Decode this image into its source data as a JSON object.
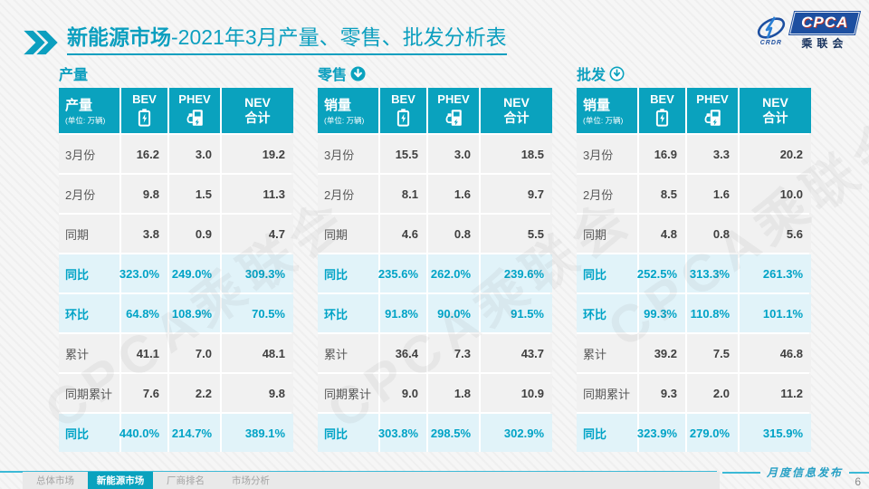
{
  "title": {
    "main": "新能源市场",
    "rest": "-2021年3月产量、零售、批发分析表"
  },
  "logo": {
    "cpca": "CPCA",
    "crdr": "CRDR",
    "assoc": "乘联会"
  },
  "watermark": "CPCA乘联会",
  "colors": {
    "accent": "#0aa2be",
    "highlight_row_bg": "#e1f3f9",
    "row_bg": "#f1f1f1",
    "percent_text": "#00a3c6"
  },
  "tables": [
    {
      "section_title": "产量",
      "arrow": "none",
      "corner": {
        "label": "产量",
        "unit": "(单位: 万辆)"
      },
      "columns": [
        {
          "label": "BEV",
          "icon": "battery-icon"
        },
        {
          "label": "PHEV",
          "icon": "charger-icon"
        },
        {
          "label": "NEV",
          "sublabel": "合计"
        }
      ],
      "rows": [
        {
          "label": "3月份",
          "values": [
            "16.2",
            "3.0",
            "19.2"
          ],
          "highlight": false
        },
        {
          "label": "2月份",
          "values": [
            "9.8",
            "1.5",
            "11.3"
          ],
          "highlight": false
        },
        {
          "label": "同期",
          "values": [
            "3.8",
            "0.9",
            "4.7"
          ],
          "highlight": false
        },
        {
          "label": "同比",
          "values": [
            "323.0%",
            "249.0%",
            "309.3%"
          ],
          "highlight": true
        },
        {
          "label": "环比",
          "values": [
            "64.8%",
            "108.9%",
            "70.5%"
          ],
          "highlight": true
        },
        {
          "label": "累计",
          "values": [
            "41.1",
            "7.0",
            "48.1"
          ],
          "highlight": false
        },
        {
          "label": "同期累计",
          "values": [
            "7.6",
            "2.2",
            "9.8"
          ],
          "highlight": false
        },
        {
          "label": "同比",
          "values": [
            "440.0%",
            "214.7%",
            "389.1%"
          ],
          "highlight": true
        }
      ]
    },
    {
      "section_title": "零售",
      "arrow": "arrow-down-solid",
      "corner": {
        "label": "销量",
        "unit": "(单位: 万辆)"
      },
      "columns": [
        {
          "label": "BEV",
          "icon": "battery-icon"
        },
        {
          "label": "PHEV",
          "icon": "charger-icon"
        },
        {
          "label": "NEV",
          "sublabel": "合计"
        }
      ],
      "rows": [
        {
          "label": "3月份",
          "values": [
            "15.5",
            "3.0",
            "18.5"
          ],
          "highlight": false
        },
        {
          "label": "2月份",
          "values": [
            "8.1",
            "1.6",
            "9.7"
          ],
          "highlight": false
        },
        {
          "label": "同期",
          "values": [
            "4.6",
            "0.8",
            "5.5"
          ],
          "highlight": false
        },
        {
          "label": "同比",
          "values": [
            "235.6%",
            "262.0%",
            "239.6%"
          ],
          "highlight": true
        },
        {
          "label": "环比",
          "values": [
            "91.8%",
            "90.0%",
            "91.5%"
          ],
          "highlight": true
        },
        {
          "label": "累计",
          "values": [
            "36.4",
            "7.3",
            "43.7"
          ],
          "highlight": false
        },
        {
          "label": "同期累计",
          "values": [
            "9.0",
            "1.8",
            "10.9"
          ],
          "highlight": false
        },
        {
          "label": "同比",
          "values": [
            "303.8%",
            "298.5%",
            "302.9%"
          ],
          "highlight": true
        }
      ]
    },
    {
      "section_title": "批发",
      "arrow": "arrow-down-outline",
      "corner": {
        "label": "销量",
        "unit": "(单位: 万辆)"
      },
      "columns": [
        {
          "label": "BEV",
          "icon": "battery-icon"
        },
        {
          "label": "PHEV",
          "icon": "charger-icon"
        },
        {
          "label": "NEV",
          "sublabel": "合计"
        }
      ],
      "rows": [
        {
          "label": "3月份",
          "values": [
            "16.9",
            "3.3",
            "20.2"
          ],
          "highlight": false
        },
        {
          "label": "2月份",
          "values": [
            "8.5",
            "1.6",
            "10.0"
          ],
          "highlight": false
        },
        {
          "label": "同期",
          "values": [
            "4.8",
            "0.8",
            "5.6"
          ],
          "highlight": false
        },
        {
          "label": "同比",
          "values": [
            "252.5%",
            "313.3%",
            "261.3%"
          ],
          "highlight": true
        },
        {
          "label": "环比",
          "values": [
            "99.3%",
            "110.8%",
            "101.1%"
          ],
          "highlight": true
        },
        {
          "label": "累计",
          "values": [
            "39.2",
            "7.5",
            "46.8"
          ],
          "highlight": false
        },
        {
          "label": "同期累计",
          "values": [
            "9.3",
            "2.0",
            "11.2"
          ],
          "highlight": false
        },
        {
          "label": "同比",
          "values": [
            "323.9%",
            "279.0%",
            "315.9%"
          ],
          "highlight": true
        }
      ]
    }
  ],
  "footer": {
    "tabs": [
      {
        "label": "总体市场",
        "active": false
      },
      {
        "label": "新能源市场",
        "active": true
      },
      {
        "label": "厂商排名",
        "active": false
      },
      {
        "label": "市场分析",
        "active": false
      }
    ],
    "publish_label": "月度信息发布",
    "page_number": "6"
  }
}
